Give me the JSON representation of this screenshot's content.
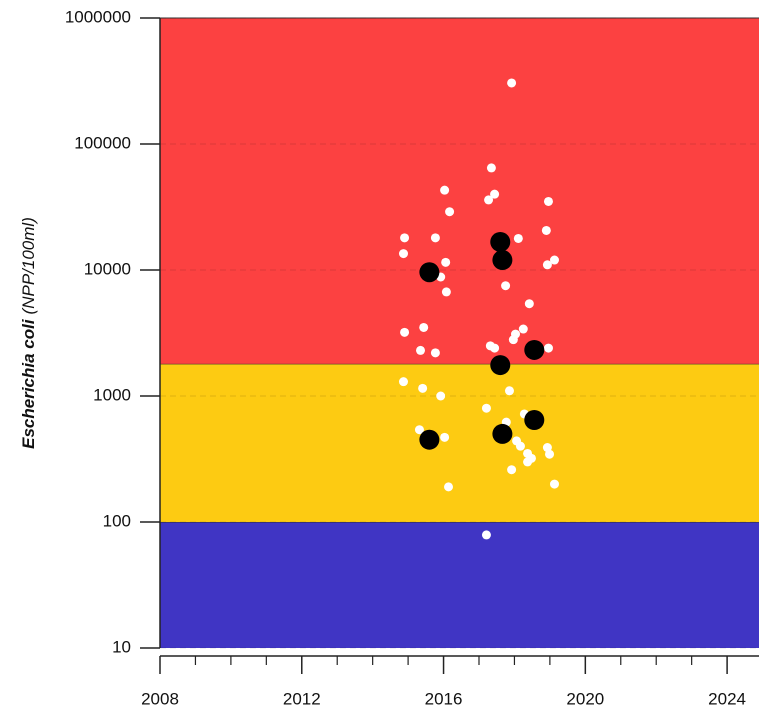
{
  "chart_data": {
    "type": "scatter",
    "ylabel": {
      "organism": "Escherichia coli",
      "unit": "(NPP/100ml)"
    },
    "log_y": true,
    "xlim": [
      2008,
      2024.9
    ],
    "xticks": [
      2008,
      2012,
      2016,
      2020,
      2024
    ],
    "xminor_ticks": [
      2009,
      2010,
      2011,
      2013,
      2014,
      2015,
      2017,
      2018,
      2019,
      2021,
      2022,
      2023
    ],
    "ylim": [
      10,
      1000000
    ],
    "yticks": [
      10,
      100,
      1000,
      10000,
      100000,
      1000000
    ],
    "grid": true,
    "bands": [
      {
        "from": 10,
        "to": 100,
        "color": "#4035c4"
      },
      {
        "from": 100,
        "to": 1800,
        "color": "#fdcb12"
      },
      {
        "from": 1800,
        "to": 1000000,
        "color": "#fc4141"
      }
    ],
    "series": [
      {
        "color": "#ffffff",
        "x": [
          2017.92,
          2017.35,
          2017.44,
          2017.27,
          2016.03,
          2016.17,
          2014.9,
          2014.87,
          2015.77,
          2016.06,
          2015.92,
          2016.08,
          2018.11,
          2017.75,
          2018.96,
          2018.9,
          2018.93,
          2019.13,
          2018.42,
          2018.25,
          2018.03,
          2017.97,
          2014.9,
          2015.44,
          2015.35,
          2015.77,
          2017.32,
          2017.44,
          2018.96,
          2014.87,
          2015.41,
          2015.92,
          2017.86,
          2017.21,
          2015.32,
          2016.03,
          2017.77,
          2018.06,
          2018.17,
          2018.37,
          2018.48,
          2018.37,
          2018.28,
          2018.93,
          2018.99,
          2017.92,
          2016.14,
          2019.13,
          2017.21
        ],
        "values": [
          305000,
          64600,
          40000,
          36000,
          43000,
          29000,
          18000,
          13500,
          18000,
          11500,
          8800,
          6700,
          17800,
          7500,
          35000,
          20600,
          11000,
          12000,
          5400,
          3400,
          3100,
          2800,
          3200,
          3500,
          2300,
          2200,
          2500,
          2400,
          2400,
          1300,
          1150,
          1000,
          1100,
          800,
          540,
          470,
          620,
          440,
          400,
          350,
          320,
          300,
          720,
          390,
          345,
          260,
          190,
          200,
          79
        ]
      },
      {
        "color": "#000000",
        "x": [
          2015.6,
          2015.6,
          2017.6,
          2017.66,
          2017.6,
          2017.66,
          2018.56,
          2018.56
        ],
        "values": [
          9600,
          450,
          16700,
          12000,
          1760,
          500,
          2320,
          645
        ]
      }
    ]
  }
}
